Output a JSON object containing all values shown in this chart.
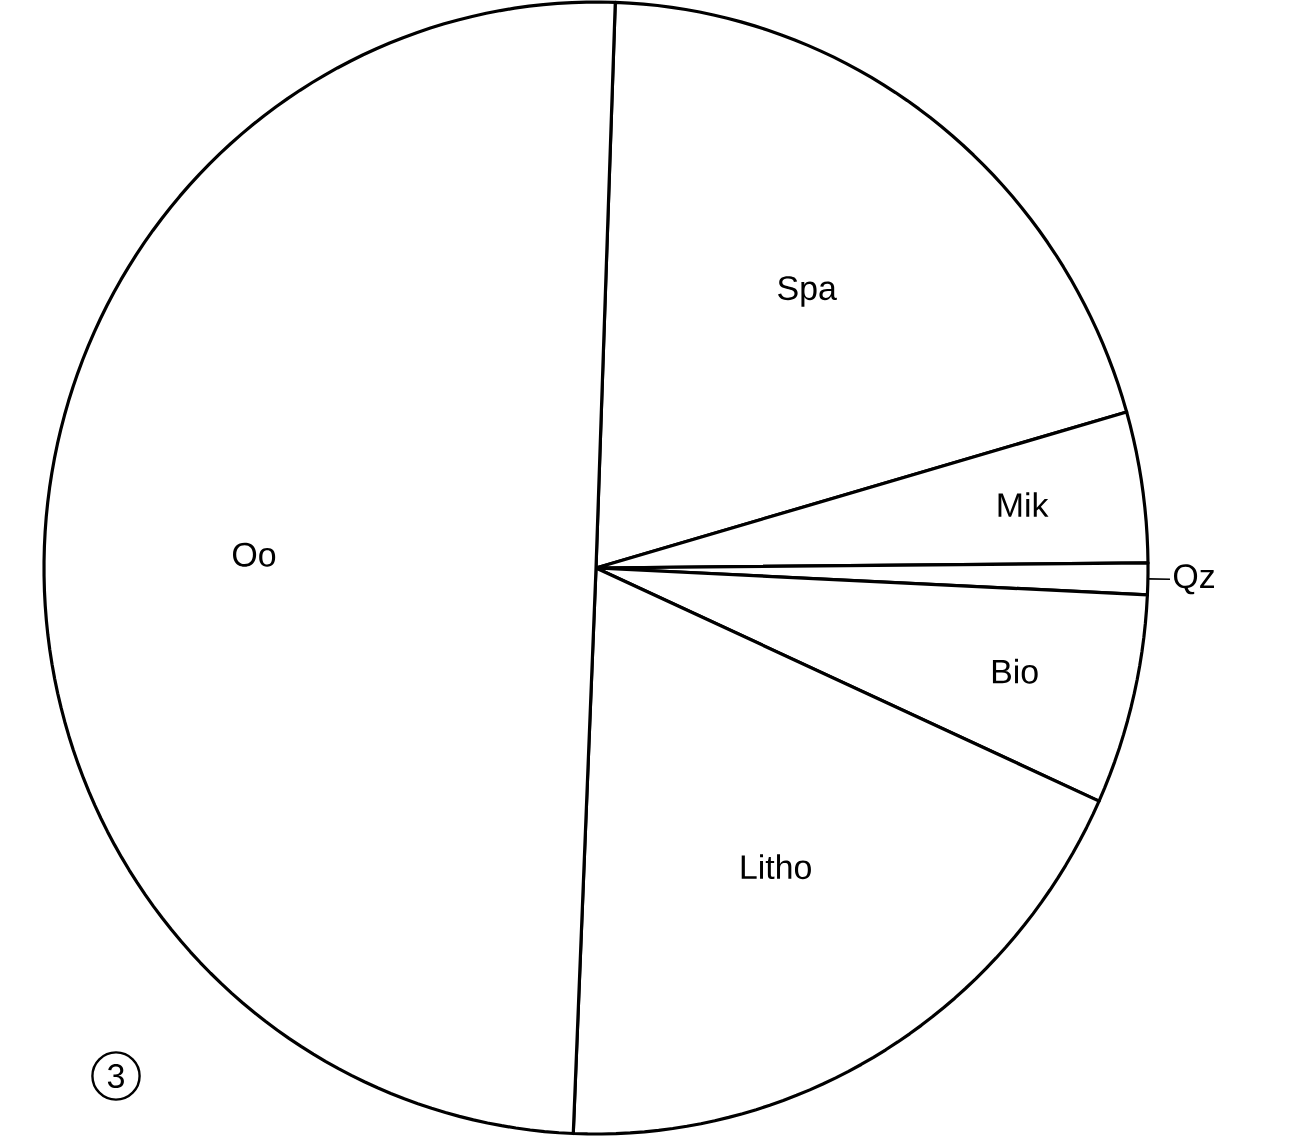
{
  "chart_data": {
    "type": "pie",
    "categories": [
      "Spa",
      "Mik",
      "Qz",
      "Bio",
      "Litho",
      "Oo"
    ],
    "values": [
      20,
      4.3,
      0.9,
      6,
      18.9,
      49.9
    ],
    "colors": [
      "#ffffff",
      "#ffffff",
      "#ffffff",
      "#ffffff",
      "#ffffff",
      "#ffffff"
    ],
    "annotations": [
      "3"
    ]
  }
}
